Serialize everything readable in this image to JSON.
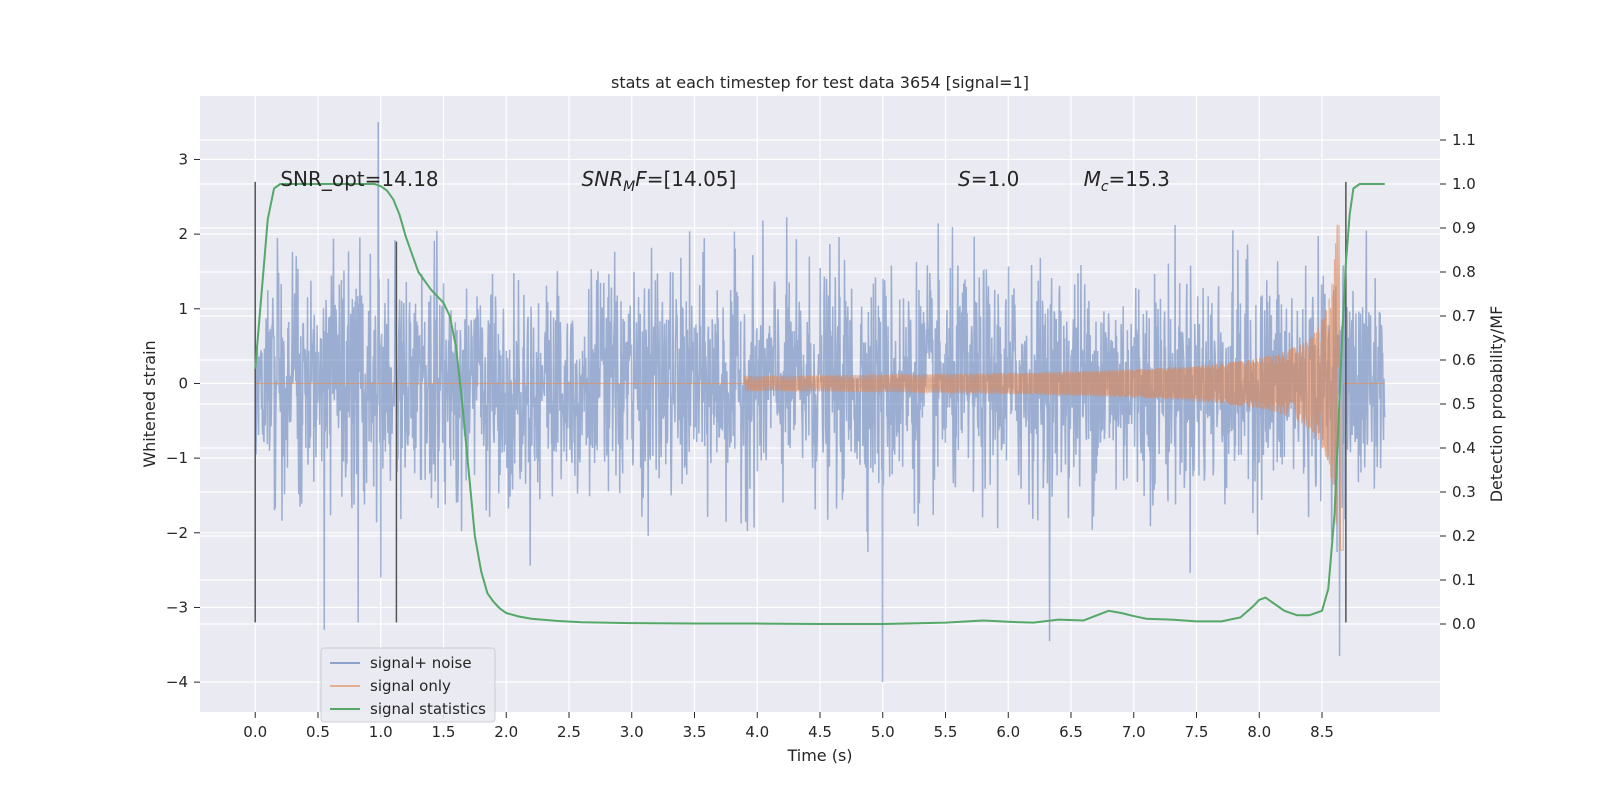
{
  "chart_data": {
    "type": "line",
    "title": "stats at each timestep for test data 3654 [signal=1]",
    "xlabel": "Time (s)",
    "ylabel_left": "Whitened strain",
    "ylabel_right": "Detection probability/MF",
    "xlim": [
      -0.44,
      9.44
    ],
    "ylim_left": [
      -4.4,
      3.85
    ],
    "ylim_right": [
      -0.2,
      1.2
    ],
    "x_ticks": [
      0.0,
      0.5,
      1.0,
      1.5,
      2.0,
      2.5,
      3.0,
      3.5,
      4.0,
      4.5,
      5.0,
      5.5,
      6.0,
      6.5,
      7.0,
      7.5,
      8.0,
      8.5
    ],
    "x_tick_labels": [
      "0.0",
      "0.5",
      "1.0",
      "1.5",
      "2.0",
      "2.5",
      "3.0",
      "3.5",
      "4.0",
      "4.5",
      "5.0",
      "5.5",
      "6.0",
      "6.5",
      "7.0",
      "7.5",
      "8.0",
      "8.5"
    ],
    "y_left_ticks": [
      -4,
      -3,
      -2,
      -1,
      0,
      1,
      2,
      3
    ],
    "y_left_tick_labels": [
      "−4",
      "−3",
      "−2",
      "−1",
      "0",
      "1",
      "2",
      "3"
    ],
    "y_right_ticks": [
      0.0,
      0.1,
      0.2,
      0.3,
      0.4,
      0.5,
      0.6,
      0.7,
      0.8,
      0.9,
      1.0,
      1.1
    ],
    "y_right_tick_labels": [
      "0.0",
      "0.1",
      "0.2",
      "0.3",
      "0.4",
      "0.5",
      "0.6",
      "0.7",
      "0.8",
      "0.9",
      "1.0",
      "1.1"
    ],
    "grid": true,
    "legend_position": "lower-left",
    "annotations": [
      {
        "x": 0.2,
        "y": 2.75,
        "parts": [
          {
            "t": "SNR_opt=14.18",
            "italic": false
          }
        ]
      },
      {
        "x": 2.6,
        "y": 2.75,
        "parts": [
          {
            "t": "SNR",
            "italic": true
          },
          {
            "t": "M",
            "italic": true,
            "sub": true
          },
          {
            "t": "F",
            "italic": true
          },
          {
            "t": "=[14.05]",
            "italic": false
          }
        ]
      },
      {
        "x": 5.6,
        "y": 2.75,
        "parts": [
          {
            "t": "S",
            "italic": true
          },
          {
            "t": "=1.0",
            "italic": false
          }
        ]
      },
      {
        "x": 6.6,
        "y": 2.75,
        "parts": [
          {
            "t": "M",
            "italic": true
          },
          {
            "t": "c",
            "italic": true,
            "sub": true
          },
          {
            "t": "=15.3",
            "italic": false
          }
        ]
      }
    ],
    "vertical_lines": [
      {
        "x": 0.0,
        "y0": -3.2,
        "y1": 2.7
      },
      {
        "x": 1.125,
        "y0": -3.2,
        "y1": 1.9
      },
      {
        "x": 8.69,
        "y0": -3.2,
        "y1": 2.7
      }
    ],
    "series": [
      {
        "name": "signal+ noise",
        "axis": "left",
        "color": "#4c72b0",
        "opacity": 0.5,
        "x_range": [
          0.0,
          9.0
        ],
        "sample_count": 2700,
        "std": 0.75,
        "noted_extremes": [
          {
            "x": 0.98,
            "y": 3.5
          },
          {
            "x": 5.0,
            "y": -4.0
          },
          {
            "x": 6.33,
            "y": -3.45
          },
          {
            "x": 8.64,
            "y": -3.65
          },
          {
            "x": 0.55,
            "y": -3.3
          },
          {
            "x": 0.82,
            "y": -3.2
          }
        ]
      },
      {
        "name": "signal only",
        "axis": "left",
        "color": "#dd8452",
        "opacity": 0.6,
        "x_range": [
          0.0,
          9.0
        ],
        "chirp_start": 3.9,
        "merger": 8.65,
        "peak_amplitude": 2.25
      },
      {
        "name": "signal statistics",
        "axis": "right",
        "color": "#55a868",
        "x": [
          0.0,
          0.05,
          0.1,
          0.15,
          0.2,
          0.3,
          0.5,
          0.7,
          0.85,
          0.95,
          1.0,
          1.05,
          1.1,
          1.15,
          1.2,
          1.3,
          1.4,
          1.5,
          1.55,
          1.6,
          1.65,
          1.7,
          1.75,
          1.8,
          1.85,
          1.9,
          1.95,
          2.0,
          2.1,
          2.2,
          2.4,
          2.6,
          3.0,
          3.5,
          4.0,
          4.5,
          5.0,
          5.5,
          5.8,
          6.0,
          6.2,
          6.4,
          6.6,
          6.8,
          6.9,
          7.0,
          7.1,
          7.3,
          7.5,
          7.7,
          7.85,
          7.95,
          8.0,
          8.05,
          8.1,
          8.2,
          8.3,
          8.4,
          8.5,
          8.55,
          8.6,
          8.63,
          8.66,
          8.69,
          8.72,
          8.75,
          8.8,
          8.9,
          9.0
        ],
        "y": [
          0.58,
          0.75,
          0.92,
          0.99,
          1.0,
          1.0,
          1.0,
          1.0,
          1.0,
          1.0,
          0.995,
          0.985,
          0.965,
          0.93,
          0.88,
          0.8,
          0.76,
          0.73,
          0.7,
          0.63,
          0.5,
          0.35,
          0.2,
          0.12,
          0.07,
          0.05,
          0.035,
          0.025,
          0.017,
          0.012,
          0.007,
          0.004,
          0.002,
          0.001,
          0.001,
          0.0,
          0.0,
          0.003,
          0.008,
          0.005,
          0.003,
          0.01,
          0.008,
          0.03,
          0.025,
          0.018,
          0.012,
          0.01,
          0.006,
          0.006,
          0.015,
          0.04,
          0.055,
          0.06,
          0.05,
          0.03,
          0.02,
          0.02,
          0.03,
          0.08,
          0.25,
          0.45,
          0.65,
          0.82,
          0.93,
          0.99,
          1.0,
          1.0,
          1.0
        ]
      }
    ]
  }
}
